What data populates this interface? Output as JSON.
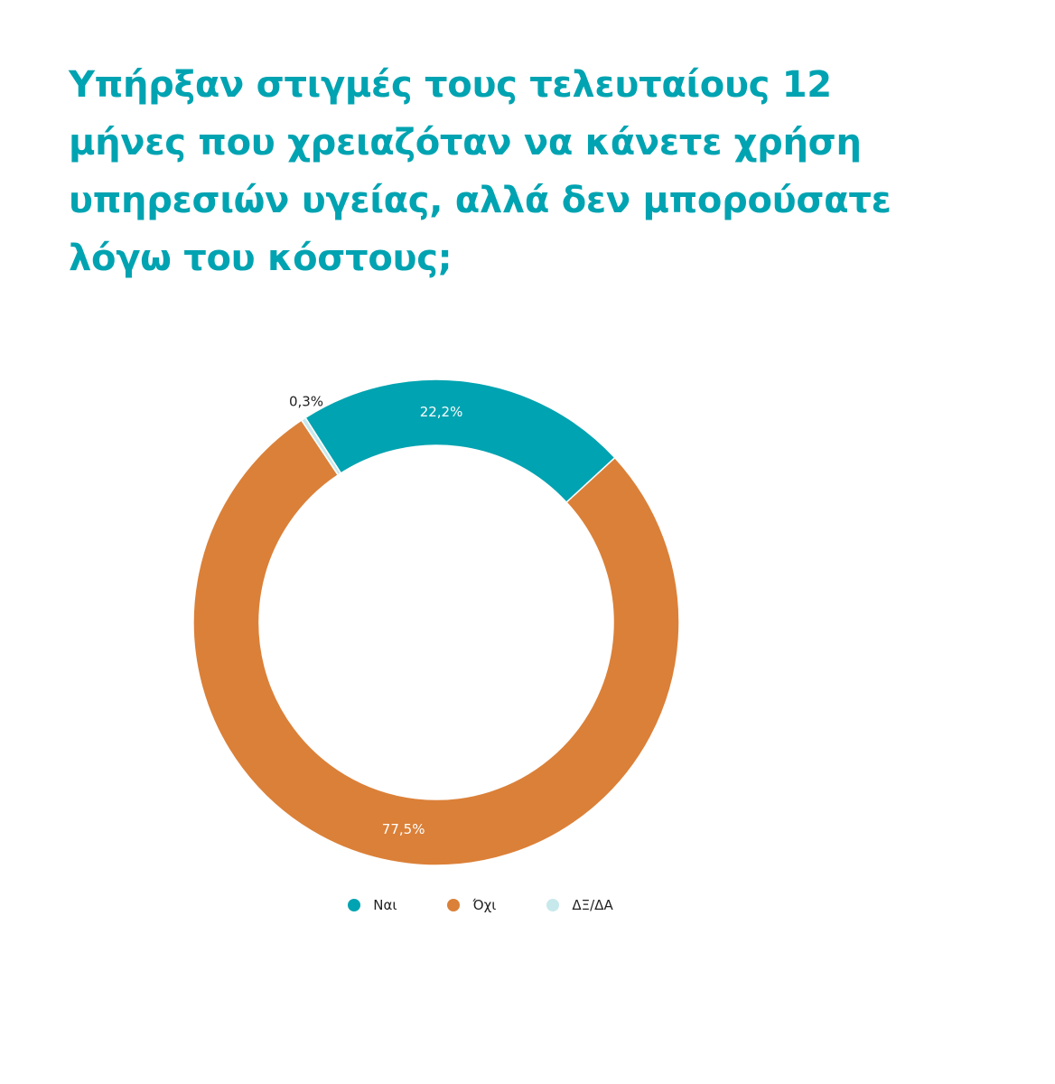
{
  "colors": {
    "title": "#00a3b1",
    "yes": "#00a3b1",
    "no": "#db8038",
    "dk": "#c8e9ec",
    "label_inside": "#ffffff",
    "label_outside": "#222222"
  },
  "chart_data": {
    "type": "pie",
    "style": "donut",
    "title": "Υπήρξαν στιγμές τους τελευταίους 12 μήνες που χρειαζόταν να κάνετε χρήση υπηρεσιών υγείας, αλλά δεν μπορούσατε λόγω του κόστους;",
    "slices": [
      {
        "label": "Ναι",
        "value": 22.2,
        "value_label": "22,2%",
        "color": "#00a3b1"
      },
      {
        "label": "Όχι",
        "value": 77.5,
        "value_label": "77,5%",
        "color": "#db8038"
      },
      {
        "label": "ΔΞ/ΔΑ",
        "value": 0.3,
        "value_label": "0,3%",
        "color": "#c8e9ec"
      }
    ],
    "legend_position": "bottom"
  }
}
